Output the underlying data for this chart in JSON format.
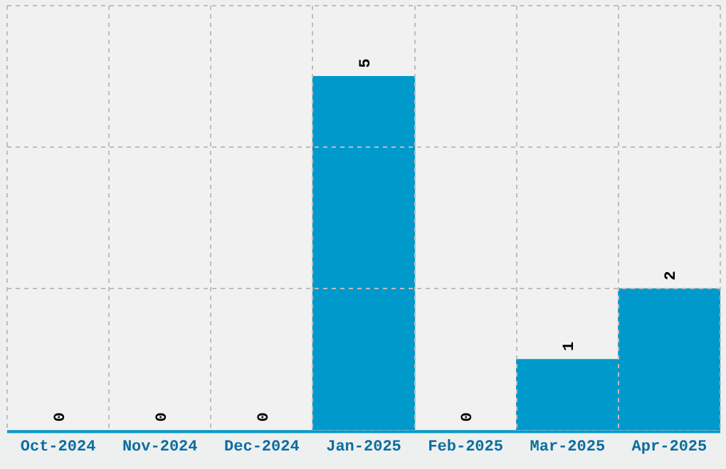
{
  "chart_data": {
    "type": "bar",
    "categories": [
      "Oct-2024",
      "Nov-2024",
      "Dec-2024",
      "Jan-2025",
      "Feb-2025",
      "Mar-2025",
      "Apr-2025"
    ],
    "values": [
      0,
      0,
      0,
      5,
      0,
      1,
      2
    ],
    "color": "#0099cc",
    "tick_labels": "x",
    "data_labels": true,
    "grid": true
  }
}
